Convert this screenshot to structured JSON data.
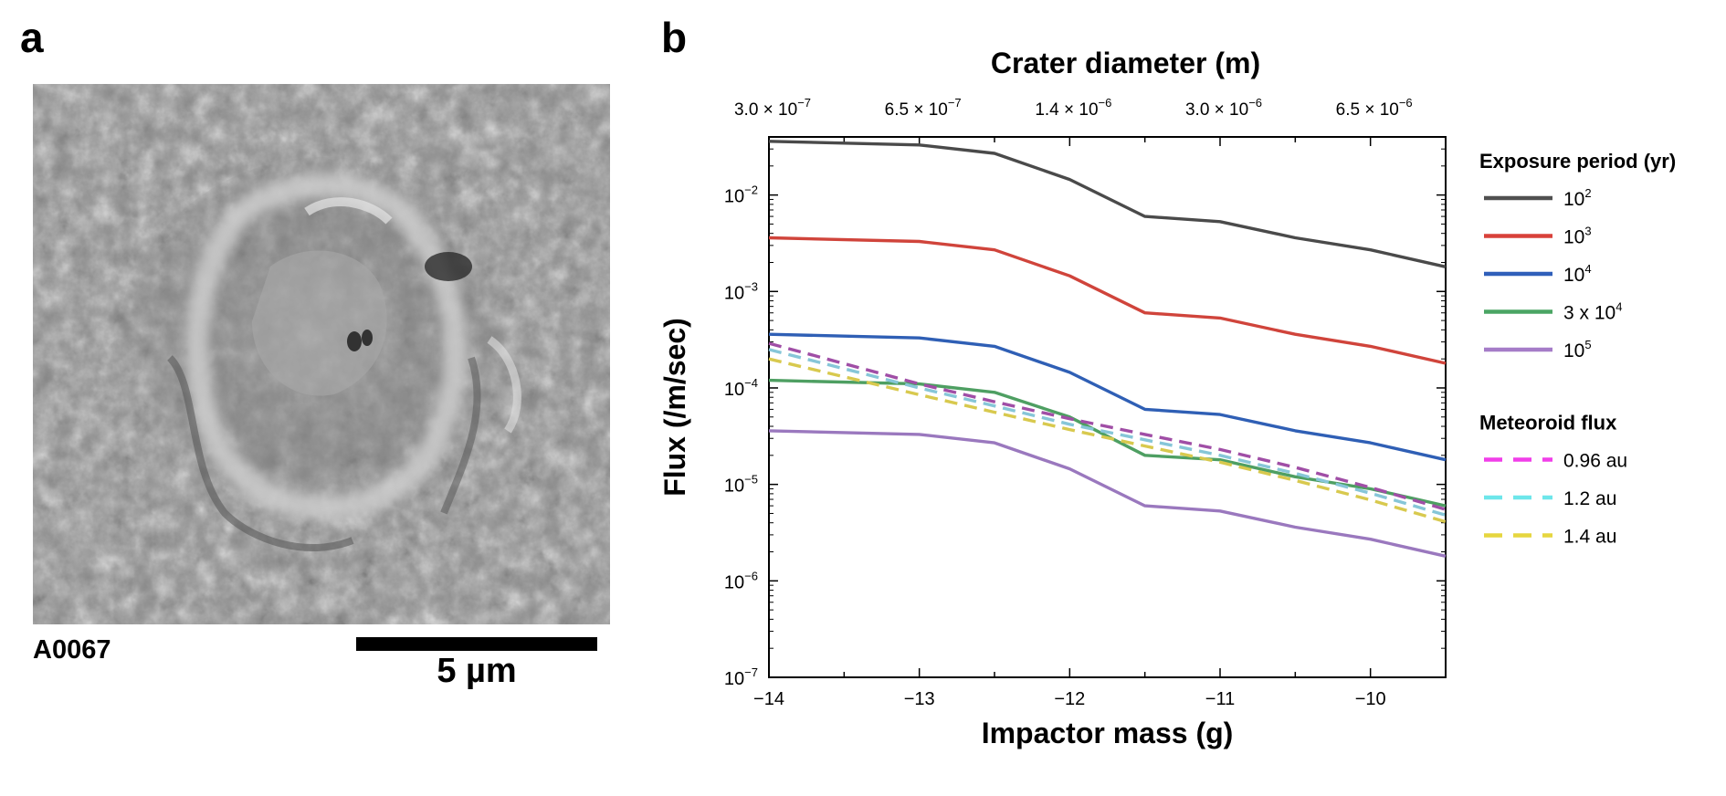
{
  "panel_a": {
    "label": "a",
    "sample_id": "A0067",
    "scale_label": "5 µm"
  },
  "panel_b": {
    "label": "b"
  },
  "chart_data": {
    "type": "line",
    "xlabel": "Impactor mass (g)",
    "ylabel": "Flux (/m/sec)",
    "top_axis_label": "Crater diameter (m)",
    "top_axis_ticks": [
      {
        "at": -14,
        "label": "3.0 × 10",
        "exp": "−7"
      },
      {
        "at": -13,
        "label": "6.5 × 10",
        "exp": "−7"
      },
      {
        "at": -12,
        "label": "1.4 × 10",
        "exp": "−6"
      },
      {
        "at": -11,
        "label": "3.0 × 10",
        "exp": "−6"
      },
      {
        "at": -10,
        "label": "6.5 × 10",
        "exp": "−6"
      }
    ],
    "xlim": [
      -14,
      -9.5
    ],
    "x_ticks": [
      -14,
      -13,
      -12,
      -11,
      -10
    ],
    "x_tick_labels": [
      "−14",
      "−13",
      "−12",
      "−11",
      "−10"
    ],
    "y_scale": "log",
    "ylim": [
      1e-07,
      0.04
    ],
    "y_ticks": [
      {
        "value": 0.01,
        "base": "10",
        "exp": "−2"
      },
      {
        "value": 0.001,
        "base": "10",
        "exp": "−3"
      },
      {
        "value": 0.0001,
        "base": "10",
        "exp": "−4"
      },
      {
        "value": 1e-05,
        "base": "10",
        "exp": "−5"
      },
      {
        "value": 1e-06,
        "base": "10",
        "exp": "−6"
      },
      {
        "value": 1e-07,
        "base": "10",
        "exp": "−7"
      }
    ],
    "x": [
      -14,
      -13,
      -12.5,
      -12,
      -11.5,
      -11,
      -10.5,
      -10,
      -9.5
    ],
    "legend_placement": "right",
    "legend_groups": [
      {
        "title": "Exposure period (yr)",
        "series_indices": [
          0,
          1,
          2,
          3,
          4
        ]
      },
      {
        "title": "Meteoroid flux",
        "series_indices": [
          5,
          6,
          7
        ]
      }
    ],
    "series": [
      {
        "name": "10",
        "name_sup": "2",
        "color": "#505050",
        "dash": "solid",
        "line_color": "#4a4a4a",
        "values": [
          0.036,
          0.033,
          0.027,
          0.0145,
          0.006,
          0.0053,
          0.0036,
          0.0027,
          0.0018
        ]
      },
      {
        "name": "10",
        "name_sup": "3",
        "color": "#d9413a",
        "dash": "solid",
        "line_color": "#d0443b",
        "values": [
          0.0036,
          0.0033,
          0.0027,
          0.00145,
          0.0006,
          0.00053,
          0.00036,
          0.00027,
          0.00018
        ]
      },
      {
        "name": "10",
        "name_sup": "4",
        "color": "#2f5fba",
        "dash": "solid",
        "line_color": "#2f5fb5",
        "values": [
          0.00036,
          0.00033,
          0.00027,
          0.000145,
          6e-05,
          5.3e-05,
          3.6e-05,
          2.7e-05,
          1.8e-05
        ]
      },
      {
        "name": "3 x 10",
        "name_sup": "4",
        "color": "#4aa564",
        "dash": "solid",
        "line_color": "#4e9f62",
        "values": [
          0.00012,
          0.00011,
          9e-05,
          5e-05,
          2e-05,
          1.8e-05,
          1.2e-05,
          9e-06,
          6e-06
        ]
      },
      {
        "name": "10",
        "name_sup": "5",
        "color": "#a57cc8",
        "dash": "solid",
        "line_color": "#9a78be",
        "values": [
          3.6e-05,
          3.3e-05,
          2.7e-05,
          1.45e-05,
          6e-06,
          5.3e-06,
          3.6e-06,
          2.7e-06,
          1.8e-06
        ]
      },
      {
        "name": "0.96 au",
        "name_sup": "",
        "color": "#f13ee9",
        "dash": "dashed",
        "line_color": "#a04ea6",
        "values": [
          0.00029,
          0.00011,
          7.2e-05,
          4.8e-05,
          3.3e-05,
          2.3e-05,
          1.5e-05,
          9.3e-06,
          5.5e-06
        ]
      },
      {
        "name": "1.2 au",
        "name_sup": "",
        "color": "#6de6ea",
        "dash": "dashed",
        "line_color": "#86c6d8",
        "values": [
          0.00025,
          0.0001,
          6.5e-05,
          4.2e-05,
          2.9e-05,
          2e-05,
          1.3e-05,
          8.1e-06,
          4.8e-06
        ]
      },
      {
        "name": "1.4 au",
        "name_sup": "",
        "color": "#e6d63f",
        "dash": "dashed",
        "line_color": "#d8c94e",
        "values": [
          0.0002,
          8.5e-05,
          5.6e-05,
          3.7e-05,
          2.5e-05,
          1.7e-05,
          1.1e-05,
          6.9e-06,
          4.1e-06
        ]
      }
    ]
  }
}
